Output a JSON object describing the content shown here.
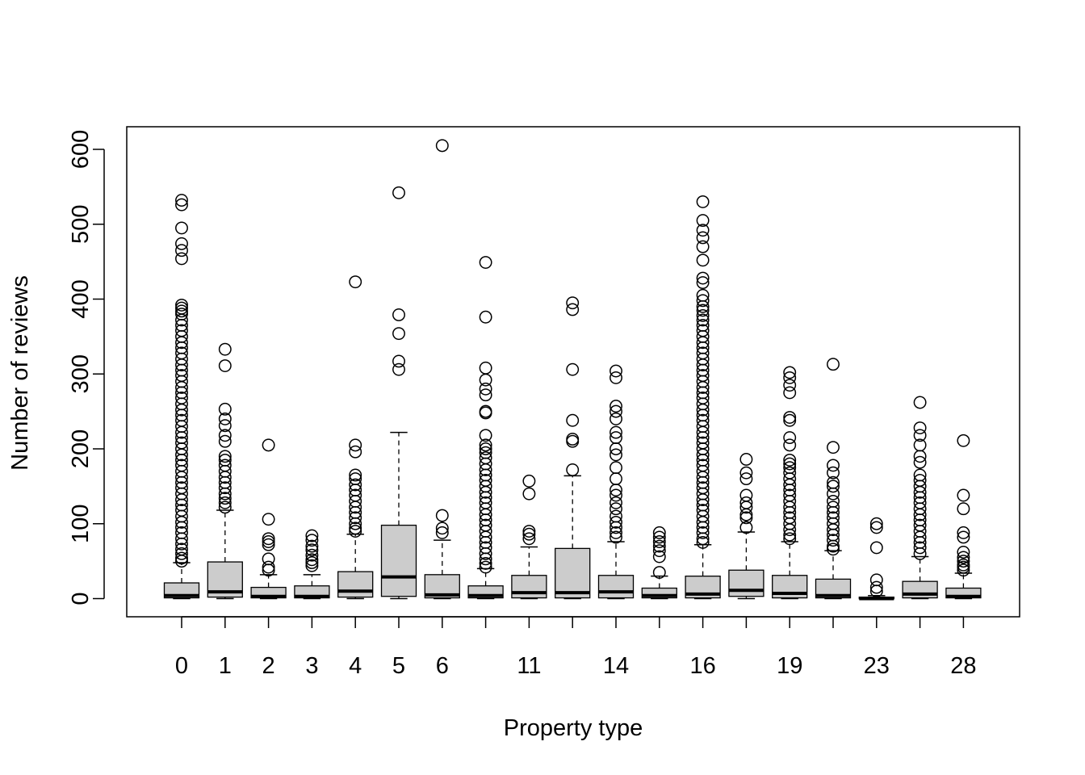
{
  "chart_data": {
    "type": "boxplot",
    "title": "",
    "xlabel": "Property type",
    "ylabel": "Number of reviews",
    "ylim": [
      -25,
      630
    ],
    "yticks": [
      0,
      100,
      200,
      300,
      400,
      500,
      600
    ],
    "x_tick_labels": [
      "0",
      "1",
      "2",
      "3",
      "4",
      "5",
      "6",
      "11",
      "14",
      "16",
      "19",
      "23",
      "28"
    ],
    "grid": false,
    "legend": "none",
    "colors": {
      "box_fill": "#cccccc",
      "stroke": "#000000",
      "background": "#ffffff"
    },
    "boxes": [
      {
        "label": "0",
        "q1": 1,
        "median": 4,
        "q3": 21,
        "whisker_low": 0,
        "whisker_high": 48,
        "outliers": [
          532,
          526,
          495,
          474,
          465,
          454,
          392,
          388,
          384,
          380,
          372,
          365,
          358,
          350,
          342,
          335,
          328,
          320,
          312,
          305,
          298,
          290,
          282,
          275,
          268,
          260,
          252,
          245,
          238,
          230,
          222,
          215,
          208,
          200,
          192,
          185,
          178,
          170,
          162,
          155,
          148,
          140,
          132,
          125,
          118,
          110,
          102,
          95,
          88,
          80,
          73,
          66,
          60,
          54,
          50
        ]
      },
      {
        "label": "1",
        "q1": 2,
        "median": 9,
        "q3": 49,
        "whisker_low": 0,
        "whisker_high": 118,
        "outliers": [
          333,
          311,
          253,
          240,
          231,
          218,
          210,
          190,
          185,
          178,
          170,
          162,
          155,
          148,
          140,
          134,
          128,
          122
        ]
      },
      {
        "label": "2",
        "q1": 1,
        "median": 3,
        "q3": 15,
        "whisker_low": 0,
        "whisker_high": 32,
        "outliers": [
          205,
          106,
          80,
          76,
          72,
          53,
          42,
          38
        ]
      },
      {
        "label": "3",
        "q1": 1,
        "median": 3,
        "q3": 17,
        "whisker_low": 0,
        "whisker_high": 32,
        "outliers": [
          84,
          78,
          70,
          65,
          58,
          52,
          48,
          44
        ]
      },
      {
        "label": "4",
        "q1": 2,
        "median": 10,
        "q3": 36,
        "whisker_low": 0,
        "whisker_high": 86,
        "outliers": [
          423,
          205,
          196,
          165,
          160,
          152,
          145,
          138,
          130,
          122,
          115,
          108,
          100,
          94,
          90
        ]
      },
      {
        "label": "5",
        "q1": 3,
        "median": 29,
        "q3": 98,
        "whisker_low": 0,
        "whisker_high": 222,
        "outliers": [
          542,
          379,
          354,
          317,
          306
        ]
      },
      {
        "label": "6",
        "q1": 1,
        "median": 5,
        "q3": 32,
        "whisker_low": 0,
        "whisker_high": 78,
        "outliers": [
          605,
          111,
          94,
          88
        ]
      },
      {
        "label": "",
        "q1": 1,
        "median": 4,
        "q3": 17,
        "whisker_low": 0,
        "whisker_high": 40,
        "outliers": [
          449,
          376,
          308,
          292,
          280,
          272,
          250,
          248,
          218,
          205,
          200,
          195,
          188,
          180,
          172,
          165,
          158,
          150,
          142,
          135,
          128,
          120,
          112,
          105,
          98,
          90,
          82,
          75,
          68,
          60,
          53,
          47,
          42
        ]
      },
      {
        "label": "11",
        "q1": 1,
        "median": 8,
        "q3": 31,
        "whisker_low": 0,
        "whisker_high": 69,
        "outliers": [
          157,
          140,
          90,
          86,
          80
        ]
      },
      {
        "label": "",
        "q1": 1,
        "median": 8,
        "q3": 67,
        "whisker_low": 0,
        "whisker_high": 164,
        "outliers": [
          395,
          386,
          306,
          238,
          213,
          210,
          172
        ]
      },
      {
        "label": "14",
        "q1": 1,
        "median": 9,
        "q3": 31,
        "whisker_low": 0,
        "whisker_high": 76,
        "outliers": [
          304,
          295,
          257,
          250,
          240,
          222,
          215,
          200,
          192,
          175,
          160,
          145,
          138,
          128,
          120,
          110,
          102,
          95,
          88,
          82
        ]
      },
      {
        "label": "",
        "q1": 1,
        "median": 4,
        "q3": 14,
        "whisker_low": 0,
        "whisker_high": 30,
        "outliers": [
          88,
          82,
          76,
          70,
          64,
          56,
          35
        ]
      },
      {
        "label": "16",
        "q1": 1,
        "median": 6,
        "q3": 30,
        "whisker_low": 0,
        "whisker_high": 72,
        "outliers": [
          530,
          505,
          492,
          482,
          470,
          452,
          428,
          422,
          405,
          398,
          390,
          385,
          378,
          372,
          365,
          358,
          350,
          342,
          335,
          328,
          320,
          312,
          305,
          298,
          290,
          282,
          275,
          268,
          260,
          252,
          245,
          238,
          230,
          222,
          215,
          208,
          200,
          192,
          185,
          178,
          170,
          162,
          155,
          148,
          140,
          132,
          125,
          118,
          110,
          102,
          95,
          88,
          80,
          75
        ]
      },
      {
        "label": "",
        "q1": 3,
        "median": 11,
        "q3": 38,
        "whisker_low": 0,
        "whisker_high": 89,
        "outliers": [
          186,
          168,
          160,
          138,
          128,
          122,
          112,
          108,
          95
        ]
      },
      {
        "label": "19",
        "q1": 1,
        "median": 7,
        "q3": 31,
        "whisker_low": 0,
        "whisker_high": 76,
        "outliers": [
          302,
          295,
          285,
          275,
          242,
          238,
          215,
          205,
          185,
          180,
          175,
          168,
          160,
          152,
          145,
          138,
          130,
          122,
          115,
          108,
          100,
          92,
          85,
          80
        ]
      },
      {
        "label": "",
        "q1": 1,
        "median": 4,
        "q3": 26,
        "whisker_low": 0,
        "whisker_high": 64,
        "outliers": [
          313,
          202,
          178,
          168,
          155,
          150,
          140,
          130,
          122,
          115,
          108,
          100,
          92,
          85,
          78,
          70,
          66
        ]
      },
      {
        "label": "23",
        "q1": 0,
        "median": 0,
        "q3": 2,
        "whisker_low": 0,
        "whisker_high": 4,
        "outliers": [
          100,
          95,
          68,
          25,
          15,
          10
        ]
      },
      {
        "label": "",
        "q1": 1,
        "median": 6,
        "q3": 23,
        "whisker_low": 0,
        "whisker_high": 56,
        "outliers": [
          262,
          228,
          218,
          205,
          190,
          182,
          165,
          158,
          150,
          142,
          135,
          128,
          120,
          112,
          105,
          98,
          90,
          82,
          75,
          68,
          60
        ]
      },
      {
        "label": "28",
        "q1": 1,
        "median": 3,
        "q3": 14,
        "whisker_low": 0,
        "whisker_high": 34,
        "outliers": [
          211,
          138,
          120,
          88,
          82,
          62,
          55,
          50,
          45,
          42,
          38
        ]
      }
    ]
  }
}
